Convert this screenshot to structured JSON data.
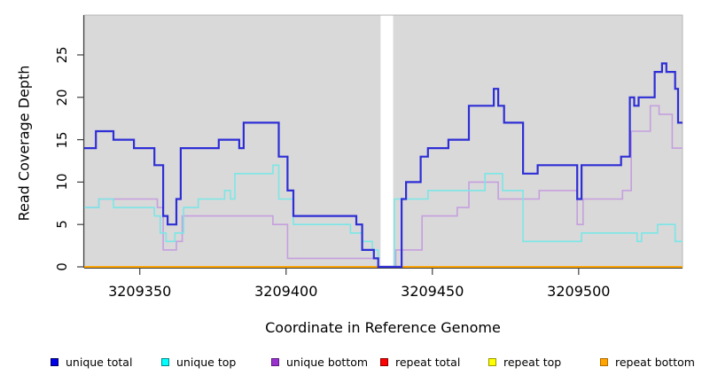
{
  "chart_data": {
    "type": "line",
    "subtype": "step",
    "title": "",
    "xlabel": "Coordinate in Reference Genome",
    "ylabel": "Read Coverage Depth",
    "xlim": [
      3209331,
      3209535.5
    ],
    "ylim": [
      0,
      29.7
    ],
    "x_end": 3209535.5,
    "xticks": [
      3209350,
      3209400,
      3209450,
      3209500
    ],
    "yticks": [
      0,
      5,
      10,
      15,
      20,
      25
    ],
    "grid": false,
    "legend_position": "bottom",
    "panel_bg": "#D9D9D9",
    "panel_border": "#A9A9A9",
    "axis_color": "#404040",
    "gap_region": {
      "x_start": 3209432.3,
      "x_end": 3209436.6,
      "color": "#FFFFFF"
    },
    "draw_order": [
      3,
      4,
      5,
      2,
      1,
      0
    ],
    "series": [
      {
        "name": "unique total",
        "line_color": "#2E2ED6",
        "line_width": 2.2,
        "legend_fill": "#0000E8",
        "legend_border": "#000060",
        "steps": [
          [
            3209331,
            14
          ],
          [
            3209335,
            16
          ],
          [
            3209341,
            15
          ],
          [
            3209348,
            14
          ],
          [
            3209355,
            12
          ],
          [
            3209358,
            6
          ],
          [
            3209359.5,
            5
          ],
          [
            3209362.5,
            8
          ],
          [
            3209364,
            14
          ],
          [
            3209377,
            15
          ],
          [
            3209384,
            14
          ],
          [
            3209385.5,
            17
          ],
          [
            3209397.5,
            13
          ],
          [
            3209400.5,
            9
          ],
          [
            3209402.5,
            6
          ],
          [
            3209424,
            5
          ],
          [
            3209426,
            2
          ],
          [
            3209430,
            1
          ],
          [
            3209431.5,
            0
          ],
          [
            3209439.5,
            8
          ],
          [
            3209441,
            10
          ],
          [
            3209446,
            13
          ],
          [
            3209448.5,
            14
          ],
          [
            3209455.5,
            15
          ],
          [
            3209462.5,
            19
          ],
          [
            3209471,
            21
          ],
          [
            3209472.5,
            19
          ],
          [
            3209474.5,
            17
          ],
          [
            3209481,
            11
          ],
          [
            3209486,
            12
          ],
          [
            3209499.5,
            8
          ],
          [
            3209501,
            12
          ],
          [
            3209514.5,
            13
          ],
          [
            3209517.5,
            20
          ],
          [
            3209519,
            19
          ],
          [
            3209520.5,
            20
          ],
          [
            3209526,
            23
          ],
          [
            3209528.5,
            24
          ],
          [
            3209530,
            23
          ],
          [
            3209533,
            21
          ],
          [
            3209534,
            17
          ]
        ]
      },
      {
        "name": "unique top",
        "line_color": "#7CE6E6",
        "line_width": 1.6,
        "legend_fill": "#00FFFF",
        "legend_border": "#008B8B",
        "steps": [
          [
            3209331,
            7
          ],
          [
            3209336,
            8
          ],
          [
            3209341,
            7
          ],
          [
            3209355,
            6
          ],
          [
            3209357,
            4
          ],
          [
            3209359,
            3
          ],
          [
            3209362,
            4
          ],
          [
            3209365,
            7
          ],
          [
            3209370,
            8
          ],
          [
            3209379,
            9
          ],
          [
            3209381,
            8
          ],
          [
            3209382.5,
            11
          ],
          [
            3209395.5,
            12
          ],
          [
            3209397.5,
            8
          ],
          [
            3209402.5,
            5
          ],
          [
            3209422,
            4
          ],
          [
            3209426,
            3
          ],
          [
            3209429.5,
            2
          ],
          [
            3209431.5,
            0
          ],
          [
            3209437,
            8
          ],
          [
            3209448.5,
            9
          ],
          [
            3209468,
            11
          ],
          [
            3209474,
            9
          ],
          [
            3209481,
            3
          ],
          [
            3209501,
            4
          ],
          [
            3209520,
            3
          ],
          [
            3209521.5,
            4
          ],
          [
            3209527,
            5
          ],
          [
            3209533,
            3
          ]
        ]
      },
      {
        "name": "unique bottom",
        "line_color": "#C59FDF",
        "line_width": 1.6,
        "legend_fill": "#9932CC",
        "legend_border": "#5E1A86",
        "steps": [
          [
            3209331,
            7
          ],
          [
            3209336,
            8
          ],
          [
            3209356,
            7
          ],
          [
            3209358,
            2
          ],
          [
            3209362.5,
            3
          ],
          [
            3209364.5,
            6
          ],
          [
            3209395.5,
            5
          ],
          [
            3209400.5,
            1
          ],
          [
            3209431.5,
            0
          ],
          [
            3209437.5,
            2
          ],
          [
            3209446.5,
            6
          ],
          [
            3209458.5,
            7
          ],
          [
            3209462.5,
            10
          ],
          [
            3209472.5,
            8
          ],
          [
            3209486.5,
            9
          ],
          [
            3209499.5,
            5
          ],
          [
            3209501.5,
            8
          ],
          [
            3209515,
            9
          ],
          [
            3209518,
            16
          ],
          [
            3209524.5,
            19
          ],
          [
            3209527.5,
            18
          ],
          [
            3209532,
            14
          ]
        ]
      },
      {
        "name": "repeat total",
        "line_color": "#E00000",
        "line_width": 1.6,
        "legend_fill": "#FF0000",
        "legend_border": "#8B0000",
        "steps": [
          [
            3209331,
            0
          ]
        ]
      },
      {
        "name": "repeat top",
        "line_color": "#F5F500",
        "line_width": 1.6,
        "legend_fill": "#FFFF00",
        "legend_border": "#9A9A00",
        "steps": [
          [
            3209331,
            0
          ]
        ]
      },
      {
        "name": "repeat bottom",
        "line_color": "#FFA500",
        "line_width": 1.8,
        "legend_fill": "#FFA500",
        "legend_border": "#B36B00",
        "steps": [
          [
            3209331,
            0
          ]
        ]
      }
    ]
  },
  "legend": {
    "item_x_positions": [
      57,
      182,
      306,
      429,
      551,
      677
    ]
  }
}
